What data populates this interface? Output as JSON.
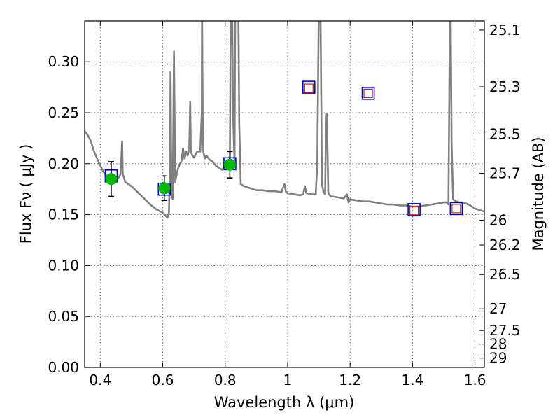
{
  "chart_data": {
    "type": "scatter",
    "xlabel": "Wavelength  λ (μm)",
    "ylabel": "Flux  Fν  ( μJy )",
    "ylabel_right": "Magnitude (AB)",
    "xlim": [
      0.35,
      1.63
    ],
    "ylim": [
      0.0,
      0.34
    ],
    "grid": true,
    "x_ticks": [
      {
        "value": 0.4,
        "label": "0.4"
      },
      {
        "value": 0.6,
        "label": "0.6"
      },
      {
        "value": 0.8,
        "label": "0.8"
      },
      {
        "value": 1.0,
        "label": "1"
      },
      {
        "value": 1.2,
        "label": "1.2"
      },
      {
        "value": 1.4,
        "label": "1.4"
      },
      {
        "value": 1.6,
        "label": "1.6"
      }
    ],
    "y_ticks": [
      {
        "value": 0.0,
        "label": "0.00"
      },
      {
        "value": 0.05,
        "label": "0.05"
      },
      {
        "value": 0.1,
        "label": "0.10"
      },
      {
        "value": 0.15,
        "label": "0.15"
      },
      {
        "value": 0.2,
        "label": "0.20"
      },
      {
        "value": 0.25,
        "label": "0.25"
      },
      {
        "value": 0.3,
        "label": "0.30"
      }
    ],
    "mag_ticks": [
      {
        "value": 25.1,
        "label": "25.1"
      },
      {
        "value": 25.3,
        "label": "25.3"
      },
      {
        "value": 25.5,
        "label": "25.5"
      },
      {
        "value": 25.7,
        "label": "25.7"
      },
      {
        "value": 26.0,
        "label": "26"
      },
      {
        "value": 26.2,
        "label": "26.2"
      },
      {
        "value": 26.5,
        "label": "26.5"
      },
      {
        "value": 27.0,
        "label": "27"
      },
      {
        "value": 27.5,
        "label": "27.5"
      },
      {
        "value": 28.0,
        "label": "28"
      },
      {
        "value": 29.0,
        "label": "29"
      }
    ],
    "colors": {
      "sed": "#808080",
      "model_box": "#0000ff",
      "upper_limit": "#dd1111",
      "observed": "#00bb00",
      "errorbar": "#000000",
      "grid": "#444444"
    },
    "series": [
      {
        "kind": "sed",
        "x": [
          0.35,
          0.36,
          0.37,
          0.38,
          0.39,
          0.4,
          0.41,
          0.42,
          0.43,
          0.44,
          0.45,
          0.455,
          0.46,
          0.465,
          0.47,
          0.472,
          0.48,
          0.5,
          0.52,
          0.54,
          0.56,
          0.58,
          0.6,
          0.61,
          0.615,
          0.62,
          0.622,
          0.625,
          0.628,
          0.632,
          0.636,
          0.64,
          0.645,
          0.65,
          0.655,
          0.66,
          0.665,
          0.67,
          0.675,
          0.68,
          0.685,
          0.688,
          0.69,
          0.695,
          0.7,
          0.71,
          0.72,
          0.725,
          0.726,
          0.728,
          0.73,
          0.735,
          0.74,
          0.75,
          0.76,
          0.77,
          0.78,
          0.79,
          0.8,
          0.81,
          0.815,
          0.818,
          0.82,
          0.822,
          0.825,
          0.83,
          0.832,
          0.835,
          0.838,
          0.84,
          0.842,
          0.845,
          0.85,
          0.86,
          0.88,
          0.9,
          0.92,
          0.94,
          0.96,
          0.98,
          0.99,
          0.995,
          1.0,
          1.02,
          1.04,
          1.05,
          1.055,
          1.06,
          1.08,
          1.09,
          1.095,
          1.1,
          1.105,
          1.11,
          1.115,
          1.12,
          1.122,
          1.125,
          1.128,
          1.13,
          1.135,
          1.14,
          1.16,
          1.18,
          1.19,
          1.195,
          1.2,
          1.22,
          1.24,
          1.26,
          1.28,
          1.3,
          1.32,
          1.34,
          1.36,
          1.38,
          1.4,
          1.42,
          1.44,
          1.46,
          1.48,
          1.5,
          1.51,
          1.515,
          1.52,
          1.522,
          1.525,
          1.53,
          1.54,
          1.55,
          1.56,
          1.57,
          1.58,
          1.59,
          1.6,
          1.61,
          1.62,
          1.63
        ],
        "y": [
          0.232,
          0.228,
          0.222,
          0.212,
          0.205,
          0.198,
          0.192,
          0.188,
          0.184,
          0.181,
          0.182,
          0.185,
          0.187,
          0.19,
          0.222,
          0.19,
          0.182,
          0.178,
          0.172,
          0.166,
          0.16,
          0.155,
          0.152,
          0.149,
          0.147,
          0.152,
          0.18,
          0.29,
          0.17,
          0.165,
          0.31,
          0.182,
          0.19,
          0.196,
          0.2,
          0.202,
          0.215,
          0.205,
          0.212,
          0.208,
          0.215,
          0.261,
          0.212,
          0.208,
          0.206,
          0.212,
          0.212,
          0.25,
          0.36,
          0.25,
          0.212,
          0.205,
          0.208,
          0.204,
          0.202,
          0.198,
          0.196,
          0.194,
          0.198,
          0.202,
          0.204,
          0.36,
          0.36,
          0.36,
          0.25,
          0.2,
          0.36,
          0.36,
          0.36,
          0.36,
          0.36,
          0.24,
          0.18,
          0.178,
          0.176,
          0.174,
          0.174,
          0.173,
          0.173,
          0.172,
          0.18,
          0.172,
          0.171,
          0.17,
          0.169,
          0.17,
          0.178,
          0.171,
          0.17,
          0.17,
          0.2,
          0.36,
          0.36,
          0.18,
          0.172,
          0.17,
          0.22,
          0.249,
          0.21,
          0.172,
          0.169,
          0.168,
          0.167,
          0.166,
          0.17,
          0.162,
          0.165,
          0.164,
          0.163,
          0.163,
          0.162,
          0.161,
          0.16,
          0.16,
          0.159,
          0.159,
          0.158,
          0.158,
          0.159,
          0.16,
          0.161,
          0.162,
          0.162,
          0.16,
          0.36,
          0.36,
          0.22,
          0.165,
          0.163,
          0.162,
          0.162,
          0.161,
          0.16,
          0.158,
          0.156,
          0.155,
          0.154,
          0.153
        ]
      },
      {
        "kind": "model_box",
        "x": [
          0.435,
          0.605,
          0.815,
          1.068,
          1.258,
          1.405,
          1.54
        ],
        "y": [
          0.188,
          0.175,
          0.2,
          0.275,
          0.269,
          0.155,
          0.156
        ]
      },
      {
        "kind": "upper_limit",
        "x": [
          1.068,
          1.258,
          1.405,
          1.54
        ],
        "y": [
          0.274,
          0.269,
          0.154,
          0.156
        ]
      },
      {
        "kind": "observed",
        "x": [
          0.435,
          0.605,
          0.815
        ],
        "y": [
          0.185,
          0.176,
          0.199
        ],
        "err": [
          0.017,
          0.012,
          0.013
        ]
      }
    ]
  }
}
